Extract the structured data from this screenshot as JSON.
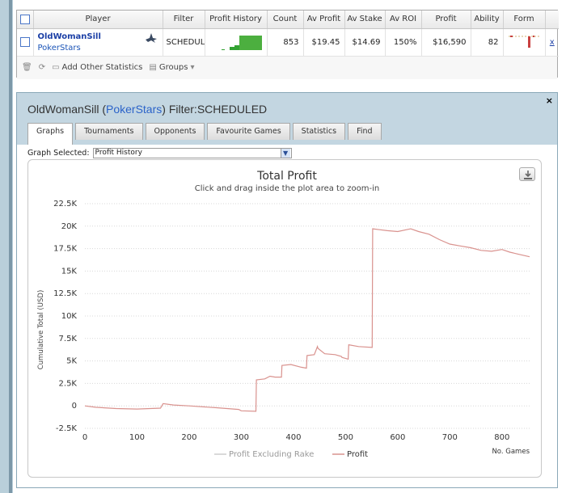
{
  "stats_table": {
    "headers": [
      "Player",
      "Filter",
      "Profit History",
      "Count",
      "Av Profit",
      "Av Stake",
      "Av ROI",
      "Profit",
      "Ability",
      "Form"
    ],
    "row": {
      "player_name": "OldWomanSill",
      "site": "PokerStars",
      "filter": "SCHEDULED",
      "count": "853",
      "av_profit": "$19.45",
      "av_stake": "$14.69",
      "av_roi": "150%",
      "profit": "$16,590",
      "ability": "82",
      "remove_link": "x"
    },
    "toolbar": {
      "add_stats_label": "Add Other Statistics",
      "groups_label": "Groups"
    }
  },
  "popup": {
    "title_player": "OldWomanSill",
    "title_site": "PokerStars",
    "title_filter": "Filter:SCHEDULED",
    "close_label": "×",
    "tabs": [
      {
        "label": "Graphs",
        "active": true
      },
      {
        "label": "Tournaments",
        "active": false
      },
      {
        "label": "Opponents",
        "active": false
      },
      {
        "label": "Favourite Games",
        "active": false
      },
      {
        "label": "Statistics",
        "active": false
      },
      {
        "label": "Find",
        "active": false
      }
    ],
    "graph_selected_label": "Graph Selected:",
    "graph_selected_value": "Profit History"
  },
  "chart_data": {
    "type": "line",
    "title": "Total Profit",
    "subtitle": "Click and drag inside the plot area to zoom-in",
    "ylabel": "Cumulative Total (USD)",
    "xlabel": "No. Games",
    "xlim": [
      0,
      853
    ],
    "ylim": [
      -2500,
      22500
    ],
    "x_ticks": [
      0,
      100,
      200,
      300,
      400,
      500,
      600,
      700,
      800
    ],
    "y_ticks": [
      -2500,
      0,
      2500,
      5000,
      7500,
      10000,
      12500,
      15000,
      17500,
      20000,
      22500
    ],
    "y_tick_labels": [
      "-2.5K",
      "0",
      "2.5K",
      "5K",
      "7.5K",
      "10K",
      "12.5K",
      "15K",
      "17.5K",
      "20K",
      "22.5K"
    ],
    "grid": "horizontal dotted",
    "legend_position": "bottom",
    "colors": {
      "profit": "#d9928e",
      "profit_excl_rake": "#cccccc"
    },
    "series": [
      {
        "name": "Profit Excluding Rake",
        "values": []
      },
      {
        "name": "Profit",
        "points": [
          [
            0,
            0
          ],
          [
            20,
            -150
          ],
          [
            60,
            -300
          ],
          [
            100,
            -350
          ],
          [
            145,
            -250
          ],
          [
            150,
            250
          ],
          [
            170,
            100
          ],
          [
            200,
            0
          ],
          [
            250,
            -200
          ],
          [
            295,
            -400
          ],
          [
            300,
            -550
          ],
          [
            328,
            -600
          ],
          [
            329,
            2900
          ],
          [
            345,
            3000
          ],
          [
            355,
            3300
          ],
          [
            365,
            3200
          ],
          [
            377,
            3200
          ],
          [
            378,
            4500
          ],
          [
            395,
            4600
          ],
          [
            415,
            4300
          ],
          [
            425,
            4200
          ],
          [
            426,
            5600
          ],
          [
            440,
            5700
          ],
          [
            446,
            6600
          ],
          [
            447,
            6400
          ],
          [
            460,
            5800
          ],
          [
            480,
            5700
          ],
          [
            492,
            5500
          ],
          [
            493,
            5400
          ],
          [
            505,
            5200
          ],
          [
            506,
            6800
          ],
          [
            525,
            6600
          ],
          [
            551,
            6500
          ],
          [
            552,
            19700
          ],
          [
            565,
            19600
          ],
          [
            580,
            19500
          ],
          [
            600,
            19400
          ],
          [
            625,
            19700
          ],
          [
            640,
            19400
          ],
          [
            660,
            19100
          ],
          [
            680,
            18500
          ],
          [
            700,
            18000
          ],
          [
            720,
            17800
          ],
          [
            740,
            17600
          ],
          [
            760,
            17300
          ],
          [
            780,
            17200
          ],
          [
            800,
            17400
          ],
          [
            815,
            17100
          ],
          [
            830,
            16900
          ],
          [
            853,
            16590
          ]
        ]
      }
    ]
  }
}
